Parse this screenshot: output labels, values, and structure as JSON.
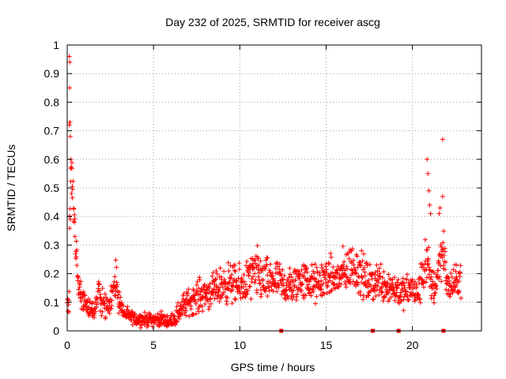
{
  "chart_data": {
    "type": "scatter",
    "title": "Day 232 of 2025, SRMTID for receiver ascg",
    "xlabel": "GPS time / hours",
    "ylabel": "SRMTID / TECUs",
    "xlim": [
      0,
      24
    ],
    "ylim": [
      0,
      1
    ],
    "x_ticks": [
      0,
      5,
      10,
      15,
      20
    ],
    "x_tick_labels": [
      "0",
      "5",
      "10",
      "15",
      "20"
    ],
    "y_ticks": [
      0,
      0.1,
      0.2,
      0.3,
      0.4,
      0.5,
      0.6,
      0.7,
      0.8,
      0.9,
      1
    ],
    "y_tick_labels": [
      "0",
      "0.1",
      "0.2",
      "0.3",
      "0.4",
      "0.5",
      "0.6",
      "0.7",
      "0.8",
      "0.9",
      "1"
    ],
    "grid": true,
    "marker": "+",
    "series_color": "#ff0000",
    "profile": {
      "name": "SRMTID",
      "x": [
        0.0,
        0.1,
        0.15,
        0.2,
        0.3,
        0.4,
        0.5,
        0.6,
        0.8,
        1.0,
        1.3,
        1.6,
        1.8,
        2.0,
        2.3,
        2.6,
        2.8,
        3.0,
        3.3,
        3.6,
        4.0,
        4.5,
        5.0,
        5.5,
        6.0,
        6.3,
        6.6,
        7.0,
        7.5,
        8.0,
        8.5,
        9.0,
        9.5,
        10.0,
        10.5,
        11.0,
        11.5,
        12.0,
        12.5,
        13.0,
        13.5,
        14.0,
        14.5,
        15.0,
        15.5,
        16.0,
        16.5,
        17.0,
        17.5,
        18.0,
        18.5,
        19.0,
        19.5,
        20.0,
        20.3,
        20.6,
        20.8,
        21.0,
        21.3,
        21.6,
        21.8,
        22.0,
        22.3,
        22.6,
        22.8
      ],
      "center": [
        0.1,
        0.09,
        0.45,
        0.55,
        0.5,
        0.4,
        0.3,
        0.2,
        0.12,
        0.1,
        0.08,
        0.07,
        0.15,
        0.1,
        0.09,
        0.12,
        0.18,
        0.1,
        0.06,
        0.05,
        0.04,
        0.04,
        0.04,
        0.04,
        0.03,
        0.05,
        0.08,
        0.1,
        0.12,
        0.13,
        0.14,
        0.16,
        0.17,
        0.15,
        0.18,
        0.2,
        0.17,
        0.18,
        0.16,
        0.15,
        0.18,
        0.17,
        0.16,
        0.19,
        0.18,
        0.2,
        0.23,
        0.2,
        0.16,
        0.18,
        0.16,
        0.15,
        0.13,
        0.15,
        0.12,
        0.2,
        0.25,
        0.18,
        0.15,
        0.25,
        0.3,
        0.15,
        0.16,
        0.17,
        0.2
      ],
      "spread": [
        0.03,
        0.04,
        0.12,
        0.08,
        0.08,
        0.08,
        0.06,
        0.05,
        0.04,
        0.04,
        0.03,
        0.03,
        0.05,
        0.04,
        0.04,
        0.05,
        0.05,
        0.04,
        0.02,
        0.02,
        0.02,
        0.02,
        0.02,
        0.02,
        0.02,
        0.03,
        0.04,
        0.04,
        0.05,
        0.05,
        0.05,
        0.06,
        0.06,
        0.06,
        0.07,
        0.08,
        0.07,
        0.06,
        0.06,
        0.06,
        0.06,
        0.06,
        0.06,
        0.06,
        0.06,
        0.07,
        0.07,
        0.07,
        0.06,
        0.06,
        0.06,
        0.05,
        0.05,
        0.05,
        0.05,
        0.07,
        0.09,
        0.07,
        0.06,
        0.07,
        0.08,
        0.05,
        0.05,
        0.05,
        0.06
      ]
    },
    "outliers": [
      {
        "x": 0.12,
        "y": 0.96
      },
      {
        "x": 0.15,
        "y": 0.94
      },
      {
        "x": 0.14,
        "y": 0.85
      },
      {
        "x": 0.16,
        "y": 0.73
      },
      {
        "x": 0.12,
        "y": 0.72
      },
      {
        "x": 0.18,
        "y": 0.68
      },
      {
        "x": 0.2,
        "y": 0.6
      },
      {
        "x": 20.85,
        "y": 0.6
      },
      {
        "x": 20.9,
        "y": 0.55
      },
      {
        "x": 20.95,
        "y": 0.49
      },
      {
        "x": 21.0,
        "y": 0.44
      },
      {
        "x": 21.05,
        "y": 0.41
      },
      {
        "x": 21.55,
        "y": 0.41
      },
      {
        "x": 21.6,
        "y": 0.43
      },
      {
        "x": 21.75,
        "y": 0.47
      },
      {
        "x": 21.75,
        "y": 0.67
      }
    ],
    "zero_markers_x": [
      12.4,
      17.7,
      19.2,
      21.8
    ]
  }
}
